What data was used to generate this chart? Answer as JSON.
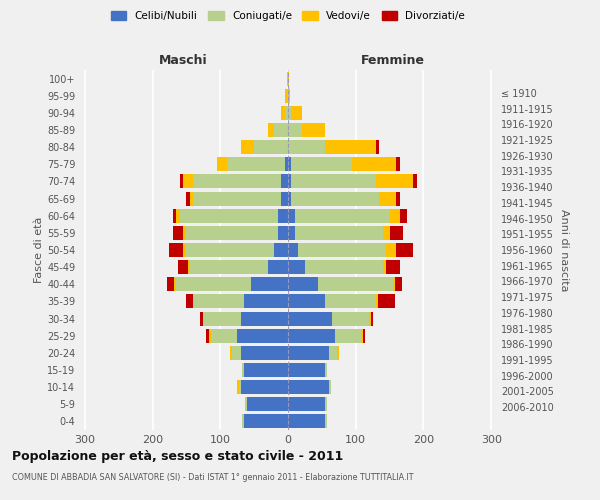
{
  "age_groups": [
    "0-4",
    "5-9",
    "10-14",
    "15-19",
    "20-24",
    "25-29",
    "30-34",
    "35-39",
    "40-44",
    "45-49",
    "50-54",
    "55-59",
    "60-64",
    "65-69",
    "70-74",
    "75-79",
    "80-84",
    "85-89",
    "90-94",
    "95-99",
    "100+"
  ],
  "birth_years": [
    "2006-2010",
    "2001-2005",
    "1996-2000",
    "1991-1995",
    "1986-1990",
    "1981-1985",
    "1976-1980",
    "1971-1975",
    "1966-1970",
    "1961-1965",
    "1956-1960",
    "1951-1955",
    "1946-1950",
    "1941-1945",
    "1936-1940",
    "1931-1935",
    "1926-1930",
    "1921-1925",
    "1916-1920",
    "1911-1915",
    "≤ 1910"
  ],
  "maschi": {
    "celibi": [
      65,
      60,
      70,
      65,
      70,
      75,
      70,
      65,
      55,
      30,
      20,
      15,
      15,
      10,
      10,
      5,
      0,
      0,
      0,
      0,
      0
    ],
    "coniugati": [
      3,
      3,
      3,
      3,
      12,
      38,
      55,
      75,
      110,
      115,
      130,
      135,
      145,
      130,
      130,
      85,
      50,
      20,
      5,
      2,
      1
    ],
    "vedovi": [
      0,
      0,
      3,
      0,
      3,
      3,
      0,
      0,
      3,
      3,
      5,
      5,
      5,
      5,
      15,
      15,
      20,
      10,
      5,
      2,
      0
    ],
    "divorziati": [
      0,
      0,
      0,
      0,
      0,
      5,
      5,
      10,
      10,
      15,
      20,
      15,
      5,
      5,
      5,
      0,
      0,
      0,
      0,
      0,
      0
    ]
  },
  "femmine": {
    "nubili": [
      55,
      55,
      60,
      55,
      60,
      70,
      65,
      55,
      45,
      25,
      15,
      10,
      10,
      5,
      5,
      5,
      0,
      0,
      0,
      0,
      0
    ],
    "coniugate": [
      3,
      3,
      3,
      3,
      12,
      38,
      55,
      75,
      110,
      115,
      130,
      130,
      140,
      130,
      125,
      90,
      55,
      20,
      5,
      0,
      0
    ],
    "vedove": [
      0,
      0,
      0,
      0,
      3,
      3,
      3,
      3,
      3,
      5,
      15,
      10,
      15,
      25,
      55,
      65,
      75,
      35,
      15,
      3,
      1
    ],
    "divorziate": [
      0,
      0,
      0,
      0,
      0,
      3,
      3,
      25,
      10,
      20,
      25,
      20,
      10,
      5,
      5,
      5,
      5,
      0,
      0,
      0,
      0
    ]
  },
  "colors": {
    "celibi": "#4472c4",
    "coniugati": "#b8d08d",
    "vedovi": "#ffc000",
    "divorziati": "#c00000"
  },
  "xlim": 310,
  "title": "Popolazione per età, sesso e stato civile - 2011",
  "subtitle": "COMUNE DI ABBADIA SAN SALVATORE (SI) - Dati ISTAT 1° gennaio 2011 - Elaborazione TUTTITALIA.IT",
  "ylabel_left": "Fasce di età",
  "ylabel_right": "Anni di nascita",
  "xlabel_left": "Maschi",
  "xlabel_right": "Femmine",
  "bg_color": "#f0f0f0"
}
